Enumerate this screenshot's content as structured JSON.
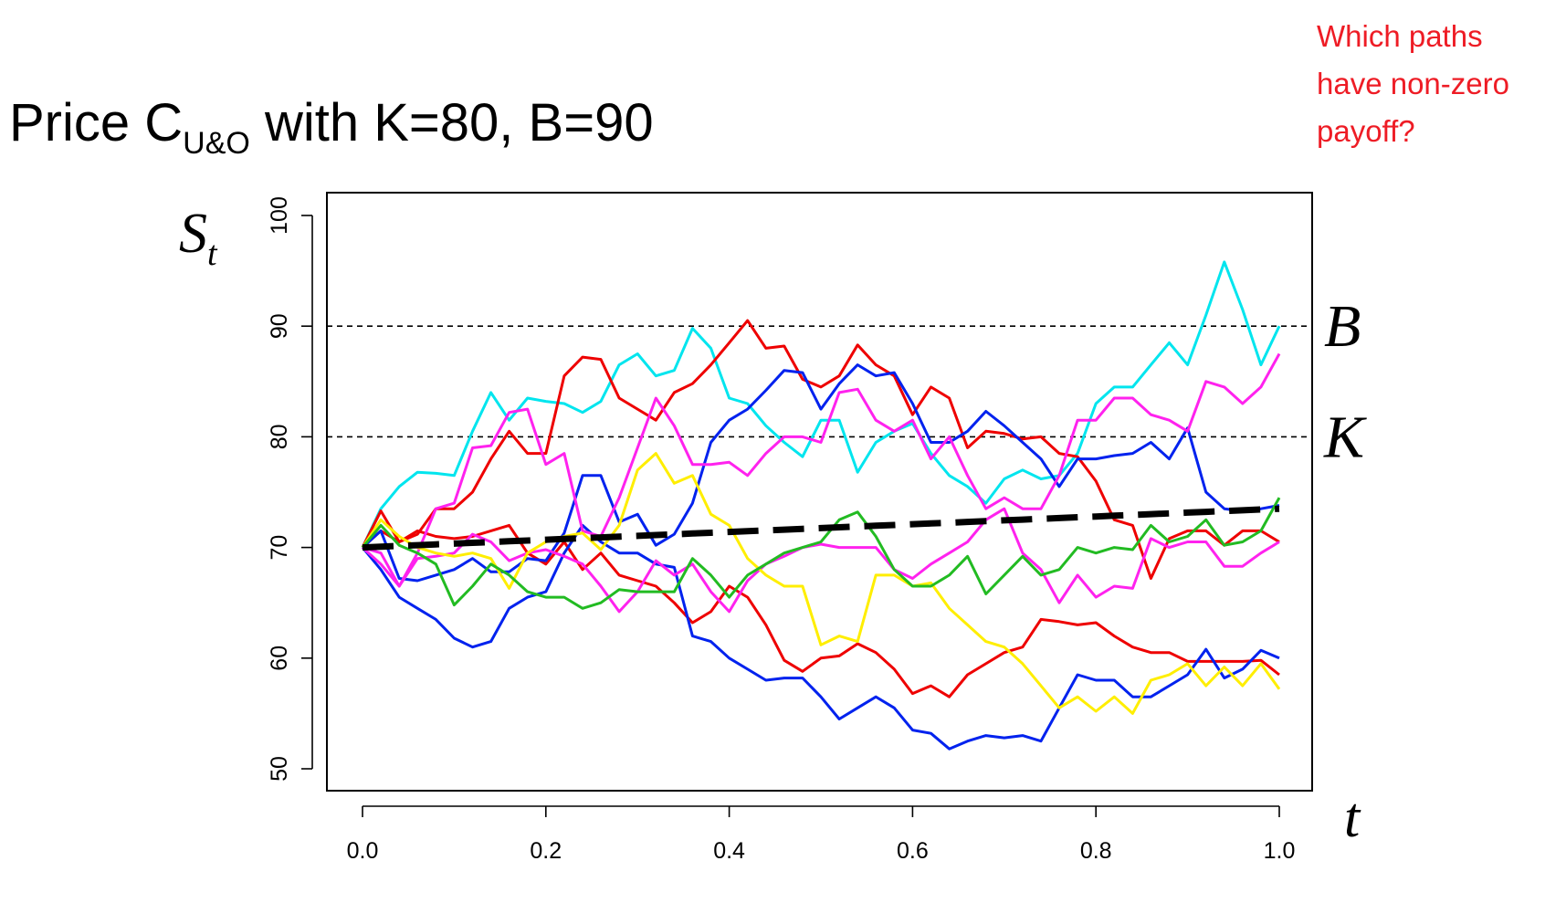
{
  "title": {
    "prefix": "Price C",
    "subscript": "U&O",
    "suffix": " with K=80, B=90"
  },
  "question_lines": [
    "Which paths",
    "have non-zero",
    "payoff?"
  ],
  "chart_data": {
    "type": "line",
    "xlabel": "t",
    "ylabel": "S",
    "ylabel_subscript": "t",
    "xlim": [
      0,
      1
    ],
    "ylim": [
      50,
      100
    ],
    "xticks": [
      0.0,
      0.2,
      0.4,
      0.6,
      0.8,
      1.0
    ],
    "xtick_labels": [
      "0.0",
      "0.2",
      "0.4",
      "0.6",
      "0.8",
      "1.0"
    ],
    "yticks": [
      50,
      60,
      70,
      80,
      90,
      100
    ],
    "ytick_labels": [
      "50",
      "60",
      "70",
      "80",
      "90",
      "100"
    ],
    "hlines": [
      {
        "label": "B",
        "y": 90
      },
      {
        "label": "K",
        "y": 80
      }
    ],
    "x": [
      0,
      0.02,
      0.04,
      0.06,
      0.08,
      0.1,
      0.12,
      0.14,
      0.16,
      0.18,
      0.2,
      0.22,
      0.24,
      0.26,
      0.28,
      0.3,
      0.32,
      0.34,
      0.36,
      0.38,
      0.4,
      0.42,
      0.44,
      0.46,
      0.48,
      0.5,
      0.52,
      0.54,
      0.56,
      0.58,
      0.6,
      0.62,
      0.64,
      0.66,
      0.68,
      0.7,
      0.72,
      0.74,
      0.76,
      0.78,
      0.8,
      0.82,
      0.84,
      0.86,
      0.88,
      0.9,
      0.92,
      0.94,
      0.96,
      0.98,
      1.0
    ],
    "series": [
      {
        "color": "#00e5ee",
        "values": [
          70,
          73.5,
          75.5,
          76.8,
          76.7,
          76.5,
          80.5,
          84,
          81.5,
          83.5,
          83.2,
          83,
          82.2,
          83.2,
          86.5,
          87.5,
          85.5,
          86,
          89.8,
          88,
          83.5,
          83,
          81,
          79.5,
          78.2,
          81.5,
          81.5,
          76.8,
          79.5,
          80.5,
          81.2,
          78.5,
          76.5,
          75.5,
          74,
          76.2,
          77,
          76.2,
          76.5,
          78.5,
          83,
          84.5,
          84.5,
          86.5,
          88.5,
          86.5,
          91,
          95.8,
          91.5,
          86.5,
          90
        ]
      },
      {
        "color": "#ee0000",
        "values": [
          70,
          73.3,
          70.5,
          71.2,
          73.5,
          73.5,
          75,
          78,
          80.5,
          78.5,
          78.5,
          85.5,
          87.2,
          87,
          83.5,
          82.5,
          81.5,
          84,
          84.8,
          86.5,
          88.5,
          90.5,
          88,
          88.2,
          85.2,
          84.5,
          85.5,
          88.3,
          86.5,
          85.5,
          82,
          84.5,
          83.5,
          79,
          80.5,
          80.3,
          79.8,
          80,
          78.5,
          78.2,
          76,
          72.5,
          72,
          67.2,
          70.8,
          71.5,
          71.5,
          70.2,
          71.5,
          71.5,
          70.5
        ]
      },
      {
        "color": "#ee0000",
        "values": [
          70,
          71.5,
          70.5,
          71.5,
          71,
          70.8,
          71,
          71.5,
          72,
          69.5,
          68.5,
          70.5,
          68,
          69.5,
          67.5,
          67,
          66.5,
          65,
          63.2,
          64.2,
          66.5,
          65.5,
          63,
          59.8,
          58.8,
          60,
          60.2,
          61.3,
          60.5,
          59,
          56.8,
          57.5,
          56.5,
          58.5,
          59.5,
          60.5,
          61,
          63.5,
          63.3,
          63,
          63.2,
          62,
          61,
          60.5,
          60.5,
          59.7,
          59.7,
          59.7,
          59.7,
          59.8,
          58.5
        ]
      },
      {
        "color": "#0022ee",
        "values": [
          70,
          71.5,
          67.2,
          67,
          67.5,
          68,
          69,
          67.8,
          67.8,
          69,
          68.8,
          71.3,
          76.5,
          76.5,
          72.3,
          73,
          70.2,
          71.2,
          74,
          79.5,
          81.5,
          82.5,
          84.2,
          86,
          85.8,
          82.5,
          84.8,
          86.5,
          85.5,
          85.8,
          83,
          79.5,
          79.5,
          80.5,
          82.3,
          81,
          79.5,
          78,
          75.5,
          78,
          78,
          78.3,
          78.5,
          79.5,
          78,
          80.8,
          75,
          73.5,
          73.3,
          73.5,
          73.8
        ]
      },
      {
        "color": "#0022ee",
        "values": [
          70,
          68,
          65.5,
          64.5,
          63.5,
          61.8,
          61,
          61.5,
          64.5,
          65.5,
          66,
          69.5,
          72,
          70.5,
          69.5,
          69.5,
          68.5,
          68.2,
          62,
          61.5,
          60,
          59,
          58,
          58.2,
          58.2,
          56.5,
          54.5,
          55.5,
          56.5,
          55.5,
          53.5,
          53.2,
          51.8,
          52.5,
          53,
          52.8,
          53,
          52.5,
          55.5,
          58.5,
          58,
          58,
          56.5,
          56.5,
          57.5,
          58.5,
          60.8,
          58.2,
          59,
          60.7,
          60
        ]
      },
      {
        "color": "#ff22ee",
        "values": [
          70,
          68.5,
          66.5,
          69.5,
          73.5,
          74,
          79,
          79.2,
          82.2,
          82.5,
          77.5,
          78.5,
          71.5,
          71,
          74.5,
          79,
          83.5,
          81,
          77.5,
          77.5,
          77.7,
          76.5,
          78.5,
          80,
          80,
          79.5,
          84,
          84.3,
          81.5,
          80.5,
          81.5,
          78,
          80,
          76.5,
          73.5,
          74.5,
          73.5,
          73.5,
          76.5,
          81.5,
          81.5,
          83.5,
          83.5,
          82,
          81.5,
          80.5,
          85,
          84.5,
          83,
          84.5,
          87.5
        ]
      },
      {
        "color": "#ff22ee",
        "values": [
          70,
          69.5,
          66.5,
          69,
          69.2,
          69.5,
          71.2,
          70.5,
          68.8,
          69.5,
          69.8,
          69.2,
          68.5,
          66.5,
          64.2,
          66,
          68.8,
          67.5,
          68.5,
          66,
          64.2,
          67,
          68.5,
          69.2,
          70,
          70.3,
          70,
          70,
          70,
          68,
          67.2,
          68.5,
          69.5,
          70.5,
          72.5,
          73.5,
          69.5,
          68,
          65,
          67.5,
          65.5,
          66.5,
          66.3,
          70.8,
          70,
          70.5,
          70.5,
          68.3,
          68.3,
          69.5,
          70.5
        ]
      },
      {
        "color": "#ffee00",
        "values": [
          70,
          72.5,
          71,
          70,
          69.5,
          69.2,
          69.5,
          69,
          66.3,
          69.5,
          70.5,
          71,
          71.3,
          69.8,
          72,
          77,
          78.5,
          75.8,
          76.5,
          73,
          72,
          69,
          67.5,
          66.5,
          66.5,
          61.2,
          62,
          61.5,
          67.5,
          67.5,
          66.5,
          66.8,
          64.5,
          63,
          61.5,
          61,
          59.5,
          57.5,
          55.5,
          56.5,
          55.2,
          56.5,
          55,
          58,
          58.5,
          59.5,
          57.5,
          59.2,
          57.5,
          59.5,
          57.2
        ]
      },
      {
        "color": "#22bb22",
        "values": [
          70,
          72,
          70.2,
          69.5,
          68.5,
          64.8,
          66.5,
          68.5,
          67.5,
          66,
          65.5,
          65.5,
          64.5,
          65,
          66.2,
          66,
          66,
          66,
          69,
          67.5,
          65.5,
          67.5,
          68.5,
          69.5,
          70,
          70.5,
          72.5,
          73.2,
          71,
          68,
          66.5,
          66.5,
          67.5,
          69.2,
          65.8,
          67.5,
          69.2,
          67.5,
          68,
          70,
          69.5,
          70,
          69.8,
          72,
          70.5,
          71,
          72.5,
          70.2,
          70.5,
          71.5,
          74.5
        ]
      },
      {
        "color": "#000000",
        "dashed": true,
        "values": [
          70,
          70.07,
          70.14,
          70.21,
          70.28,
          70.35,
          70.42,
          70.49,
          70.56,
          70.63,
          70.7,
          70.77,
          70.84,
          70.91,
          70.98,
          71.05,
          71.12,
          71.19,
          71.26,
          71.33,
          71.4,
          71.47,
          71.54,
          71.61,
          71.68,
          71.75,
          71.82,
          71.89,
          71.96,
          72.03,
          72.1,
          72.17,
          72.24,
          72.31,
          72.38,
          72.45,
          72.52,
          72.59,
          72.66,
          72.73,
          72.8,
          72.87,
          72.94,
          73.01,
          73.08,
          73.15,
          73.22,
          73.29,
          73.36,
          73.43,
          73.5
        ]
      }
    ]
  }
}
